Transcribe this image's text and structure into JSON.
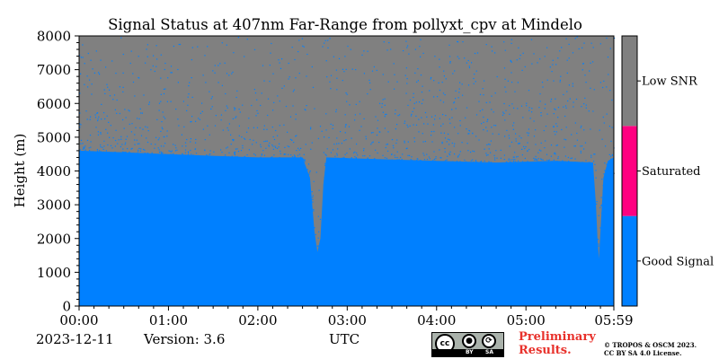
{
  "chart_data": {
    "type": "heatmap",
    "title": "Signal Status at 407nm Far-Range from pollyxt_cpv at Mindelo",
    "xlabel": "UTC",
    "ylabel": "Height (m)",
    "x_ticks": [
      "00:00",
      "01:00",
      "02:00",
      "03:00",
      "04:00",
      "05:00",
      "05:59"
    ],
    "x_range_minutes": [
      0,
      359
    ],
    "y_ticks": [
      0,
      1000,
      2000,
      3000,
      4000,
      5000,
      6000,
      7000,
      8000
    ],
    "ylim": [
      0,
      8000
    ],
    "categories": [
      {
        "label": "Good Signal",
        "color": "#0080ff"
      },
      {
        "label": "Saturated",
        "color": "#ff0080"
      },
      {
        "label": "Low SNR",
        "color": "#808080"
      }
    ],
    "good_signal_top_m": [
      [
        0,
        4600
      ],
      [
        30,
        4550
      ],
      [
        60,
        4500
      ],
      [
        90,
        4450
      ],
      [
        120,
        4400
      ],
      [
        150,
        4400
      ],
      [
        155,
        3800
      ],
      [
        158,
        2200
      ],
      [
        160,
        1600
      ],
      [
        162,
        2000
      ],
      [
        164,
        3600
      ],
      [
        166,
        4400
      ],
      [
        200,
        4350
      ],
      [
        240,
        4300
      ],
      [
        280,
        4250
      ],
      [
        320,
        4300
      ],
      [
        345,
        4250
      ],
      [
        347,
        3000
      ],
      [
        348,
        2000
      ],
      [
        349,
        1400
      ],
      [
        350,
        2200
      ],
      [
        352,
        3800
      ],
      [
        355,
        4300
      ],
      [
        359,
        4400
      ]
    ]
  },
  "footer": {
    "date": "2023-12-11",
    "version": "Version: 3.6",
    "preliminary": "Preliminary\nResults.",
    "copyright": "© TROPOS & OSCM 2023.\nCC BY SA 4.0 License.",
    "license_badge": {
      "cc": "cc",
      "by": "BY",
      "sa": "SA"
    }
  },
  "colors": {
    "good_signal": "#0080ff",
    "saturated": "#ff0080",
    "low_snr": "#808080",
    "preliminary_text": "#e8312b"
  }
}
